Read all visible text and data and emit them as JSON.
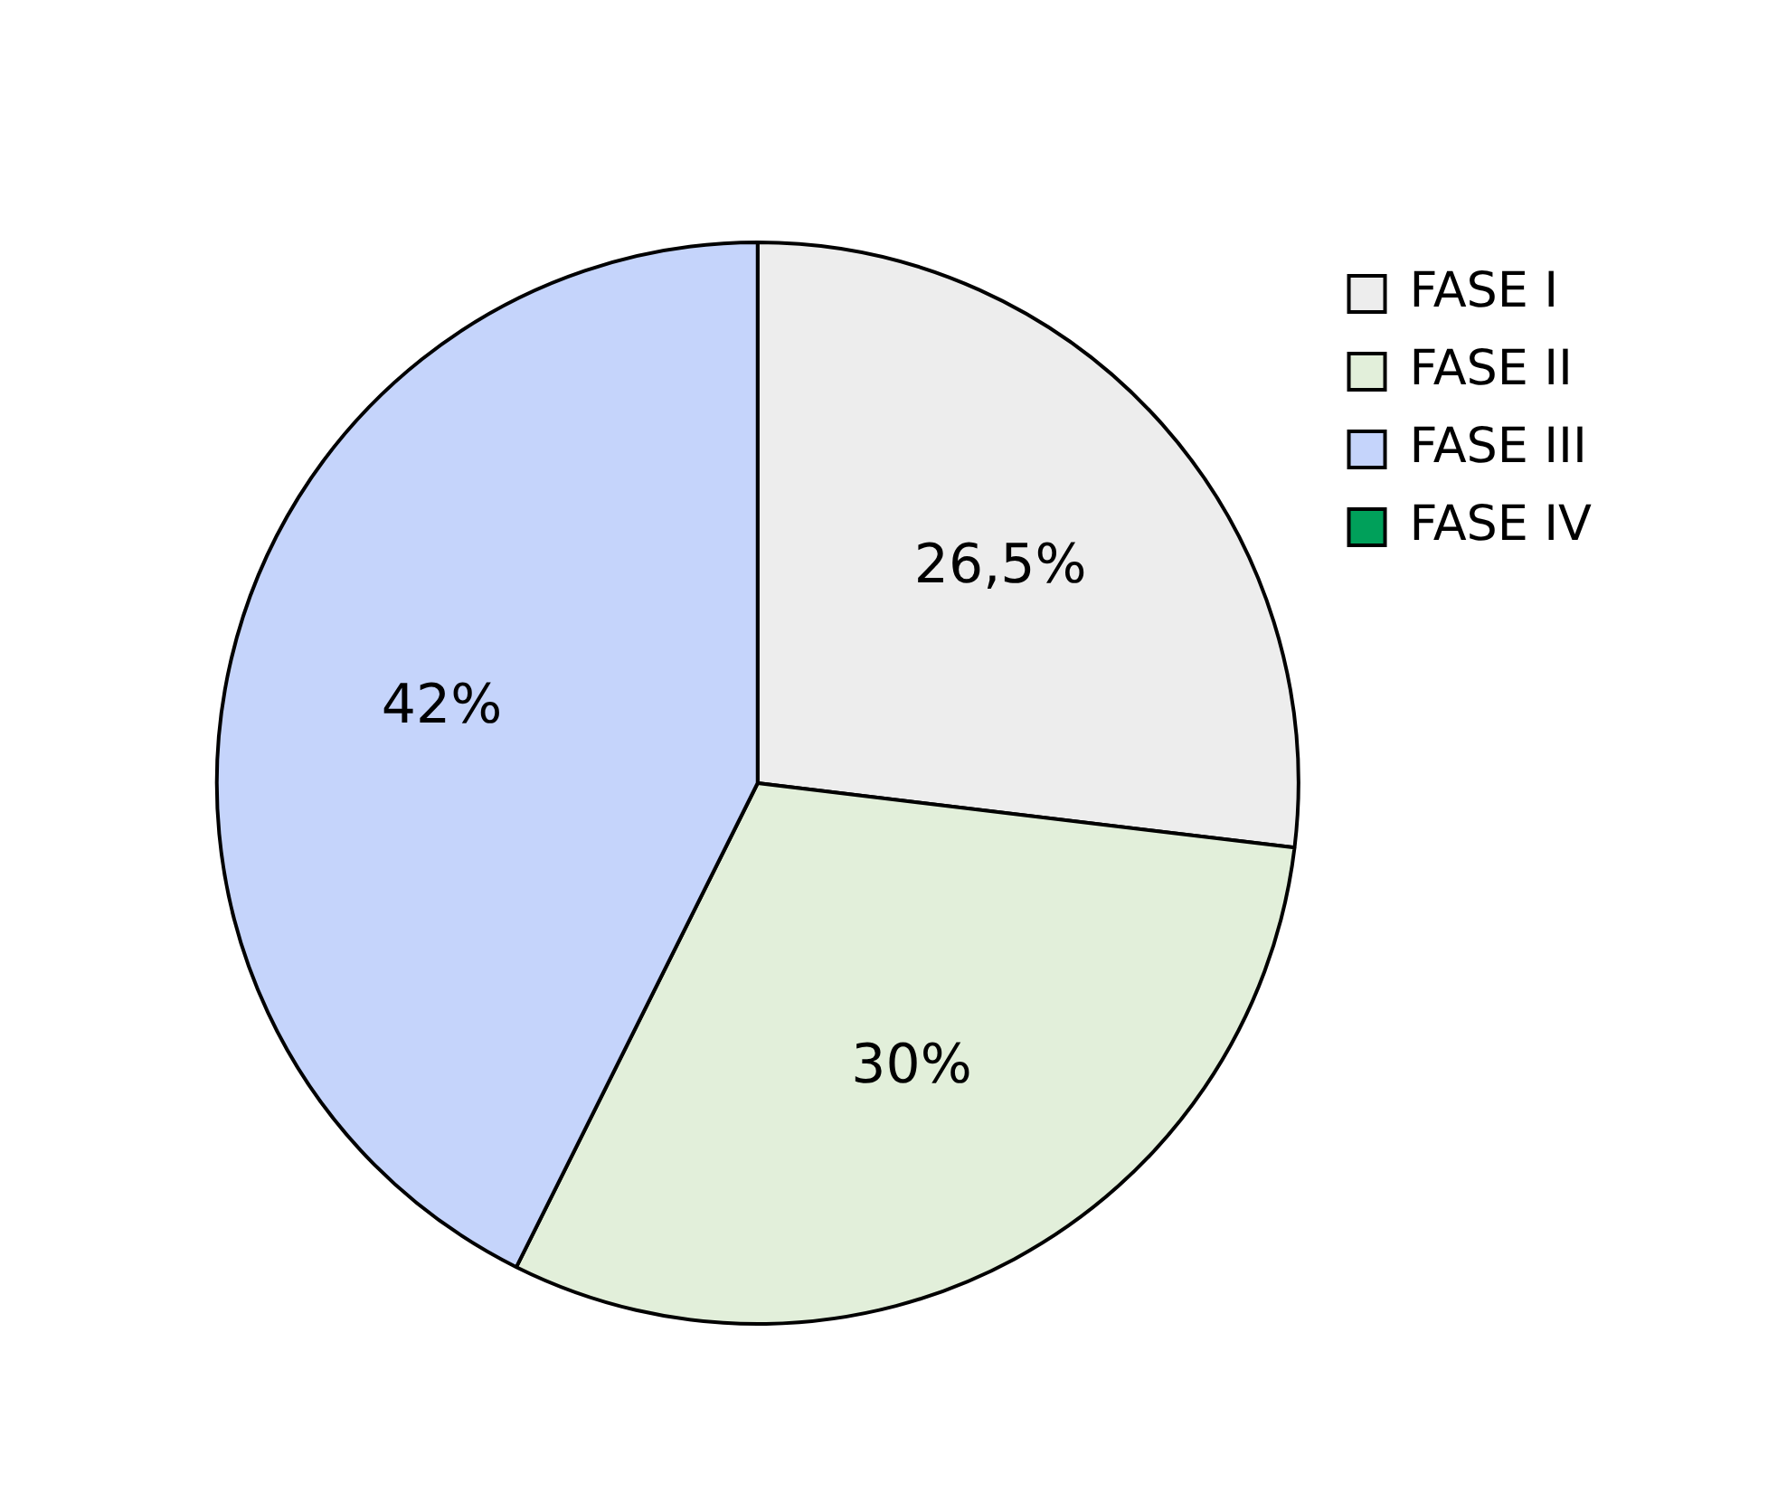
{
  "chart_data": {
    "type": "pie",
    "categories": [
      "FASE I",
      "FASE II",
      "FASE III",
      "FASE IV"
    ],
    "values": [
      26.5,
      30,
      42,
      0
    ],
    "value_labels": [
      "26,5%",
      "30%",
      "42%",
      null
    ],
    "colors": [
      "#ededed",
      "#e2efda",
      "#c5d4fb",
      "#00a05a"
    ],
    "legend": "top right"
  }
}
